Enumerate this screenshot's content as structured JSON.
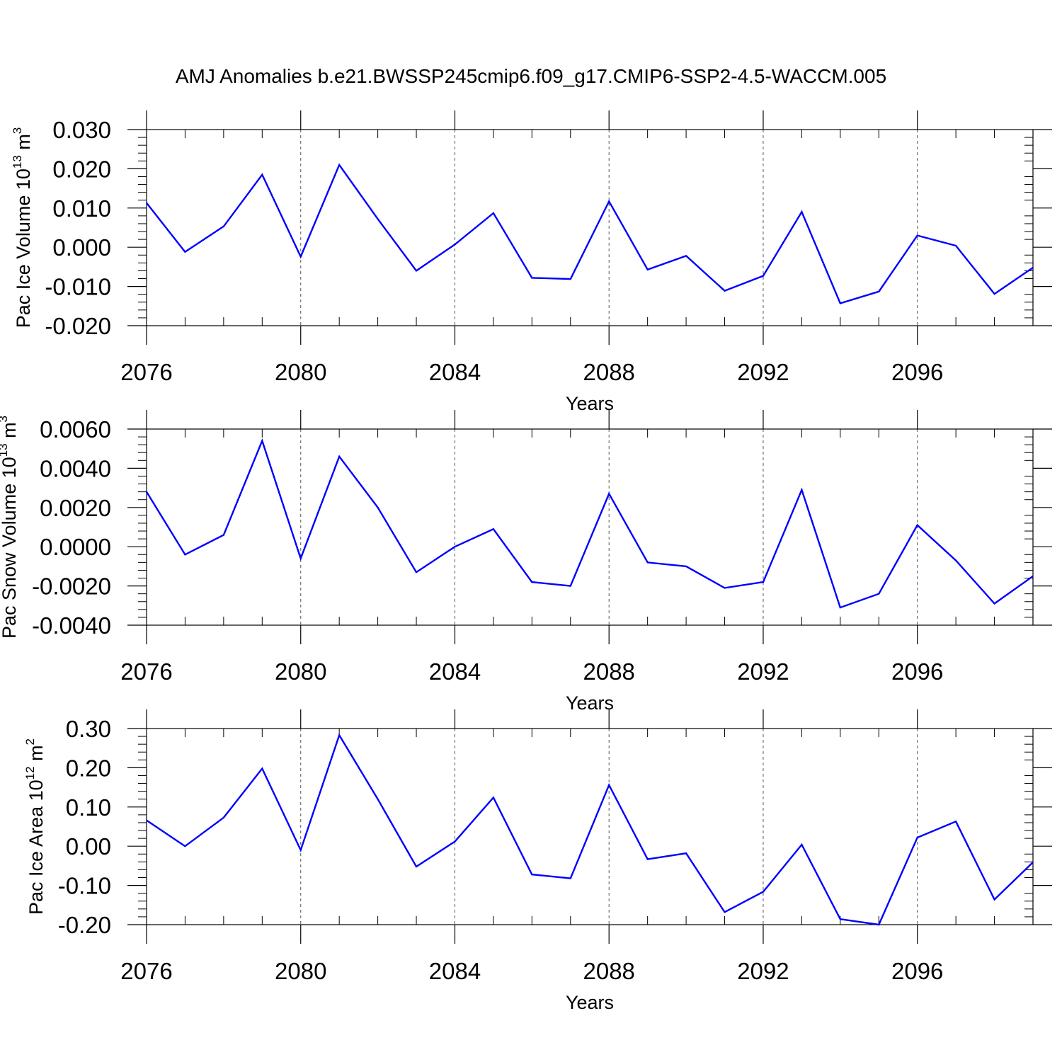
{
  "title": "AMJ Anomalies b.e21.BWSSP245cmip6.f09_g17.CMIP6-SSP2-4.5-WACCM.005",
  "colors": {
    "line": "#0000ff",
    "axis": "#000000",
    "grid": "#555555"
  },
  "chart_data": [
    {
      "type": "line",
      "ylabel": "Pac Ice Volume 10",
      "ylabel_exp": "13",
      "ylabel_unit": "m",
      "ylabel_unit_exp": "3",
      "xlabel": "Years",
      "xlim": [
        2076,
        2099
      ],
      "ylim": [
        -0.02,
        0.03
      ],
      "yticks": [
        -0.02,
        -0.01,
        0.0,
        0.01,
        0.02,
        0.03
      ],
      "ytick_labels": [
        "-0.020",
        "-0.010",
        "0.000",
        "0.010",
        "0.020",
        "0.030"
      ],
      "xticks": [
        2076,
        2080,
        2084,
        2088,
        2092,
        2096
      ],
      "xtick_labels": [
        "2076",
        "2080",
        "2084",
        "2088",
        "2092",
        "2096"
      ],
      "grid": "vertical dashed at major x ticks",
      "x": [
        2076,
        2077,
        2078,
        2079,
        2080,
        2081,
        2082,
        2083,
        2084,
        2085,
        2086,
        2087,
        2088,
        2089,
        2090,
        2091,
        2092,
        2093,
        2094,
        2095,
        2096,
        2097,
        2098,
        2099
      ],
      "y": [
        0.0113,
        -0.0012,
        0.0053,
        0.0185,
        -0.0024,
        0.021,
        0.0072,
        -0.006,
        0.0007,
        0.0087,
        -0.0078,
        -0.0081,
        0.0117,
        -0.0057,
        -0.0022,
        -0.0111,
        -0.0073,
        0.009,
        -0.0143,
        -0.0113,
        0.003,
        0.0004,
        -0.0119,
        -0.0052
      ]
    },
    {
      "type": "line",
      "ylabel": "Pac Snow Volume 10",
      "ylabel_exp": "13",
      "ylabel_unit": "m",
      "ylabel_unit_exp": "3",
      "xlabel": "Years",
      "xlim": [
        2076,
        2099
      ],
      "ylim": [
        -0.004,
        0.006
      ],
      "yticks": [
        -0.004,
        -0.002,
        0.0,
        0.002,
        0.004,
        0.006
      ],
      "ytick_labels": [
        "-0.0040",
        "-0.0020",
        "0.0000",
        "0.0020",
        "0.0040",
        "0.0060"
      ],
      "xticks": [
        2076,
        2080,
        2084,
        2088,
        2092,
        2096
      ],
      "xtick_labels": [
        "2076",
        "2080",
        "2084",
        "2088",
        "2092",
        "2096"
      ],
      "grid": "vertical dashed at major x ticks",
      "x": [
        2076,
        2077,
        2078,
        2079,
        2080,
        2081,
        2082,
        2083,
        2084,
        2085,
        2086,
        2087,
        2088,
        2089,
        2090,
        2091,
        2092,
        2093,
        2094,
        2095,
        2096,
        2097,
        2098,
        2099
      ],
      "y": [
        0.0028,
        -0.0004,
        0.0006,
        0.0054,
        -0.0006,
        0.0046,
        0.002,
        -0.0013,
        0.0,
        0.0009,
        -0.0018,
        -0.002,
        0.0027,
        -0.0008,
        -0.001,
        -0.0021,
        -0.0018,
        0.0029,
        -0.0031,
        -0.0024,
        0.0011,
        -0.0007,
        -0.0029,
        -0.0015
      ]
    },
    {
      "type": "line",
      "ylabel": "Pac Ice Area 10",
      "ylabel_exp": "12",
      "ylabel_unit": "m",
      "ylabel_unit_exp": "2",
      "xlabel": "Years",
      "xlim": [
        2076,
        2099
      ],
      "ylim": [
        -0.2,
        0.3
      ],
      "yticks": [
        -0.2,
        -0.1,
        0.0,
        0.1,
        0.2,
        0.3
      ],
      "ytick_labels": [
        "-0.20",
        "-0.10",
        "0.00",
        "0.10",
        "0.20",
        "0.30"
      ],
      "xticks": [
        2076,
        2080,
        2084,
        2088,
        2092,
        2096
      ],
      "xtick_labels": [
        "2076",
        "2080",
        "2084",
        "2088",
        "2092",
        "2096"
      ],
      "grid": "vertical dashed at major x ticks",
      "x": [
        2076,
        2077,
        2078,
        2079,
        2080,
        2081,
        2082,
        2083,
        2084,
        2085,
        2086,
        2087,
        2088,
        2089,
        2090,
        2091,
        2092,
        2093,
        2094,
        2095,
        2096,
        2097,
        2098,
        2099
      ],
      "y": [
        0.066,
        0.0,
        0.073,
        0.198,
        -0.01,
        0.283,
        0.12,
        -0.052,
        0.012,
        0.124,
        -0.072,
        -0.082,
        0.156,
        -0.033,
        -0.018,
        -0.168,
        -0.116,
        0.004,
        -0.186,
        -0.2,
        0.022,
        0.063,
        -0.136,
        -0.041
      ]
    }
  ]
}
